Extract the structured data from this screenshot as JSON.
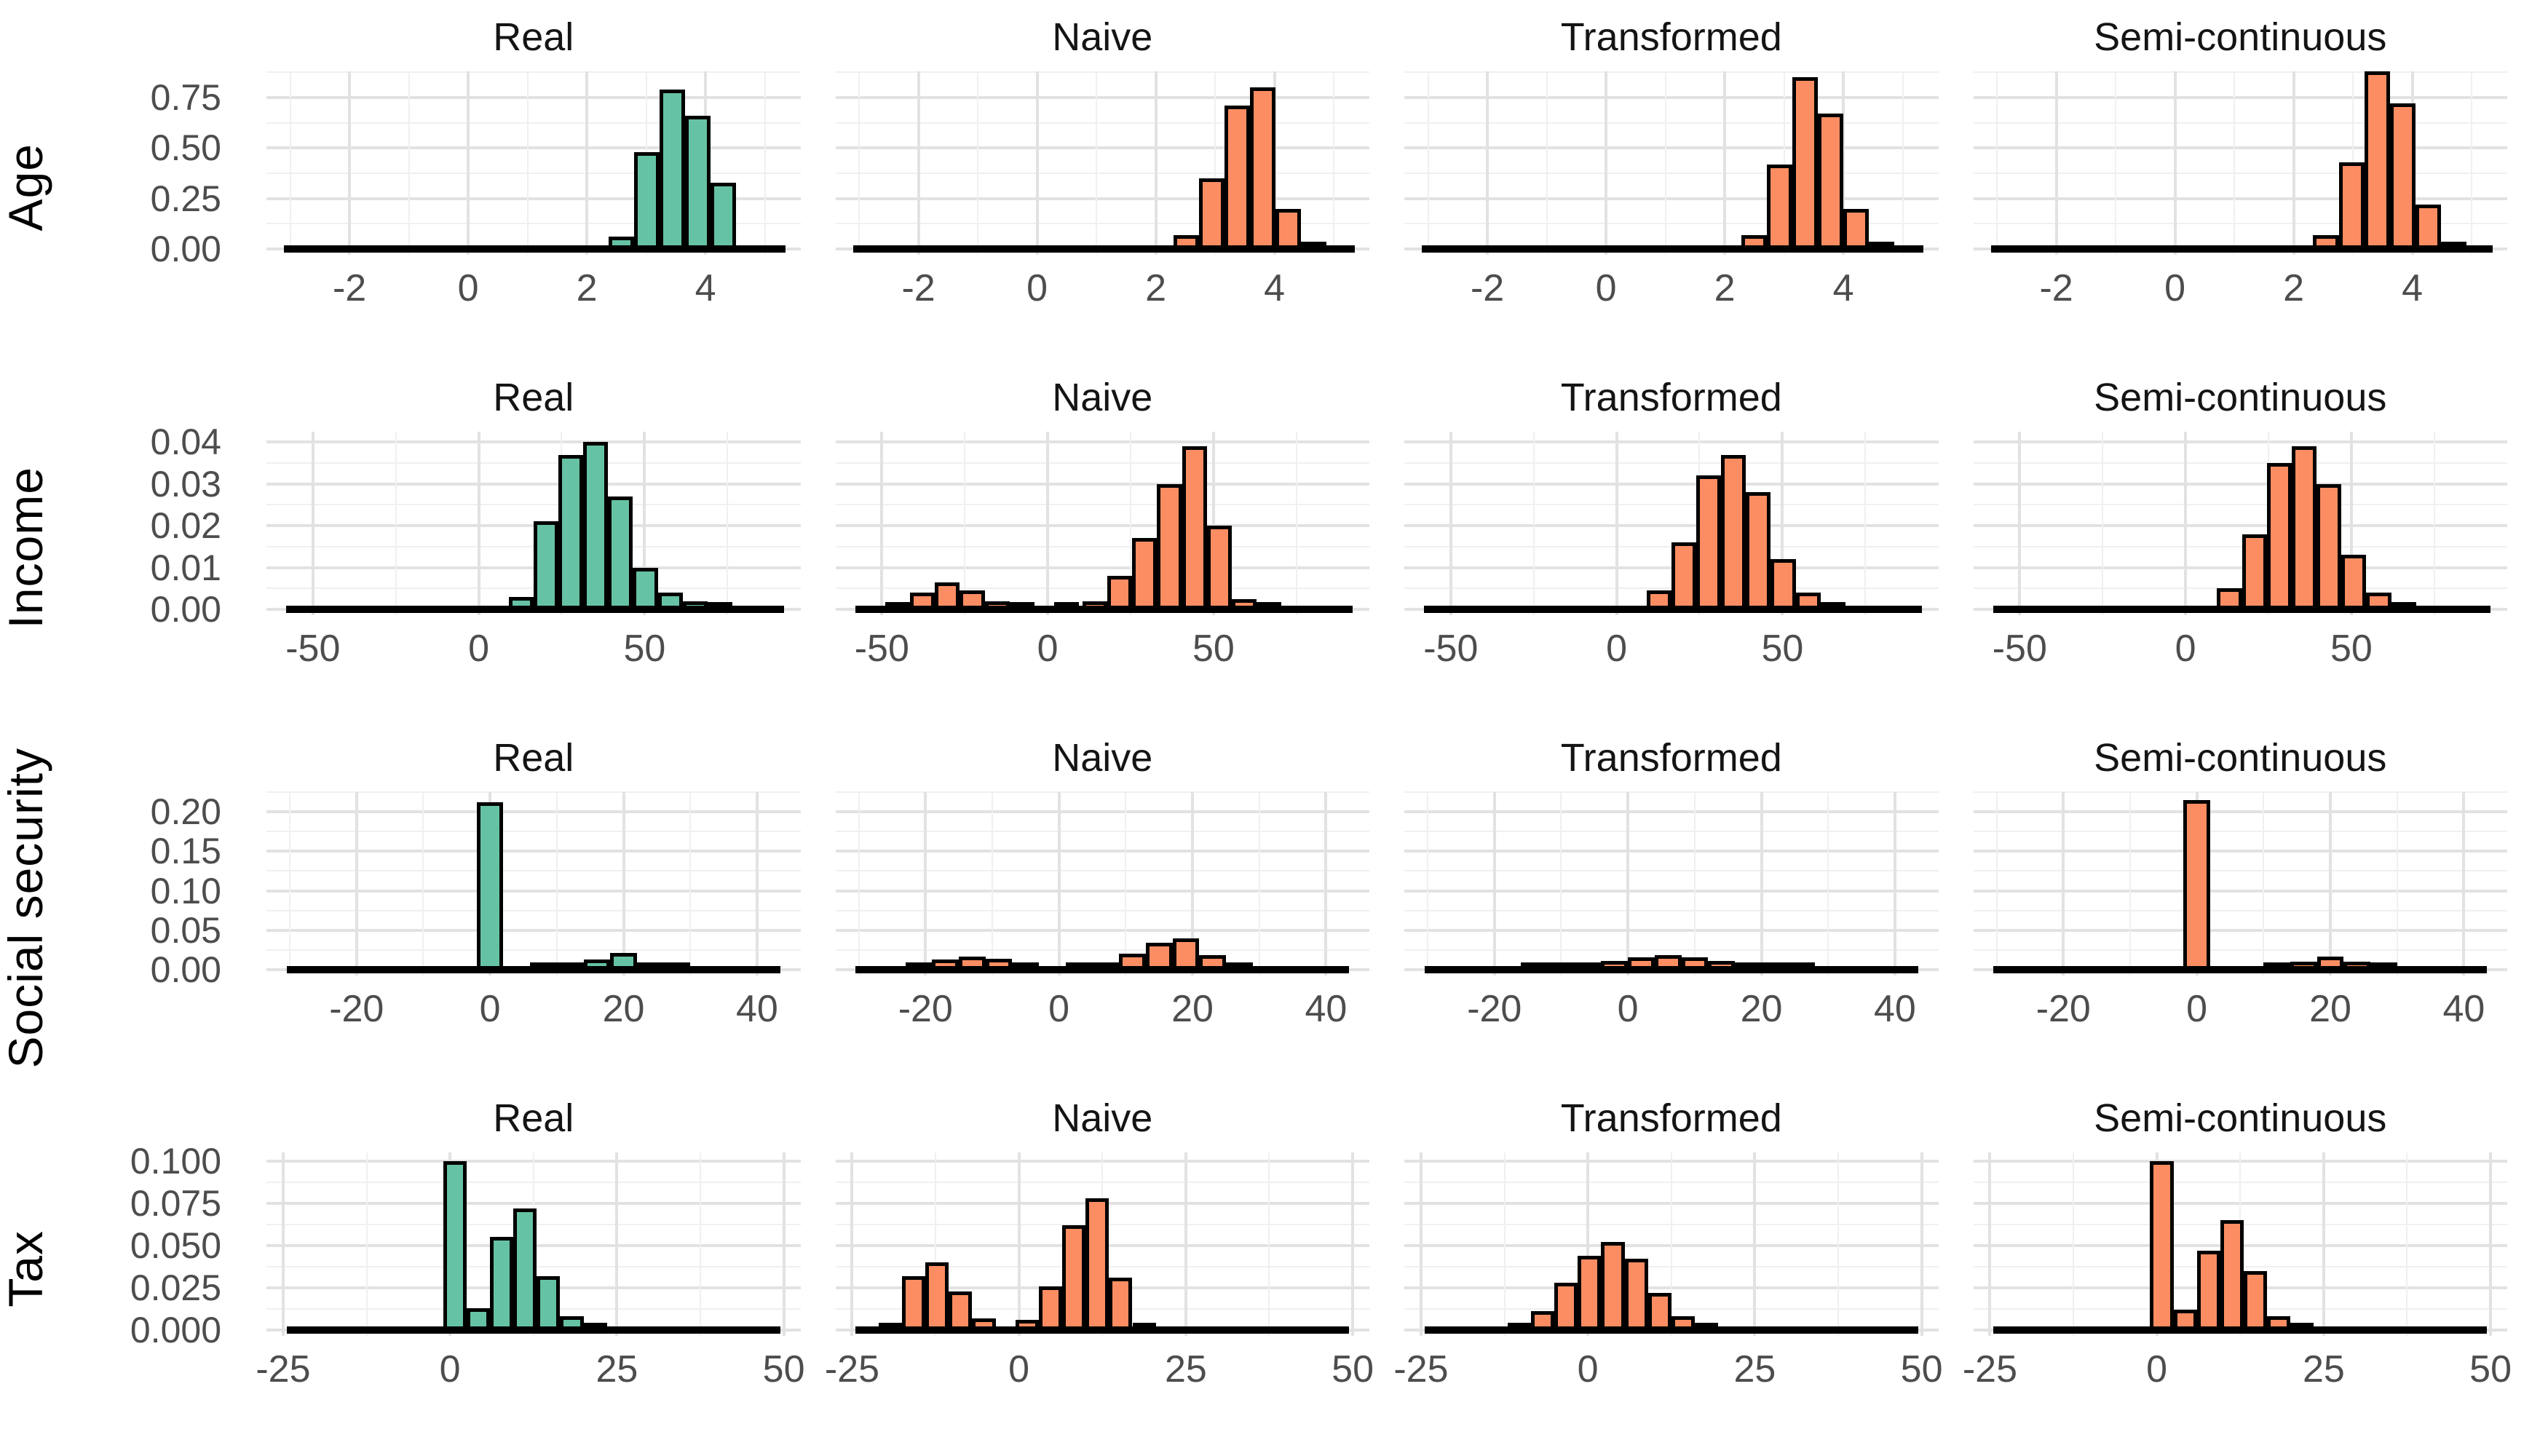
{
  "figure": {
    "kind": "faceted histogram grid",
    "columns": [
      "Real",
      "Naive",
      "Transformed",
      "Semi-continuous"
    ],
    "rows": [
      "Age",
      "Income",
      "Social security",
      "Tax"
    ]
  },
  "colors": {
    "real": "#66C2A5",
    "synthetic": "#FC8D62",
    "bar_stroke": "#000000",
    "grid_major": "#e2e2e2",
    "grid_minor": "#f0f0f0",
    "axis_text": "#4d4d4d",
    "title_text": "#141414"
  },
  "chart_data": [
    {
      "type": "bar",
      "row_label": "Age",
      "xlim": [
        -3.4,
        5.6
      ],
      "xticks": [
        {
          "v": -2,
          "label": "-2"
        },
        {
          "v": 0,
          "label": "0"
        },
        {
          "v": 2,
          "label": "2"
        },
        {
          "v": 4,
          "label": "4"
        }
      ],
      "ylim": [
        0,
        0.88
      ],
      "yticks": [
        {
          "v": 0,
          "label": "0.00"
        },
        {
          "v": 0.25,
          "label": "0.25"
        },
        {
          "v": 0.5,
          "label": "0.50"
        },
        {
          "v": 0.75,
          "label": "0.75"
        }
      ],
      "binwidth": 0.43,
      "baseline": [
        -3.1,
        5.35
      ],
      "panels": [
        {
          "title": "Real",
          "color": "real",
          "bars": [
            [
              2.37,
              0.06
            ],
            [
              2.8,
              0.48
            ],
            [
              3.23,
              0.79
            ],
            [
              3.66,
              0.66
            ],
            [
              4.09,
              0.33
            ]
          ]
        },
        {
          "title": "Naive",
          "color": "synthetic",
          "bars": [
            [
              2.3,
              0.07
            ],
            [
              2.73,
              0.35
            ],
            [
              3.16,
              0.71
            ],
            [
              3.59,
              0.8
            ],
            [
              4.02,
              0.2
            ],
            [
              4.45,
              0.02
            ]
          ]
        },
        {
          "title": "Transformed",
          "color": "synthetic",
          "bars": [
            [
              2.28,
              0.07
            ],
            [
              2.71,
              0.42
            ],
            [
              3.14,
              0.85
            ],
            [
              3.57,
              0.67
            ],
            [
              4.0,
              0.2
            ],
            [
              4.43,
              0.03
            ]
          ]
        },
        {
          "title": "Semi-continuous",
          "color": "synthetic",
          "bars": [
            [
              2.33,
              0.07
            ],
            [
              2.76,
              0.43
            ],
            [
              3.19,
              0.88
            ],
            [
              3.62,
              0.72
            ],
            [
              4.05,
              0.22
            ],
            [
              4.48,
              0.03
            ]
          ]
        }
      ]
    },
    {
      "type": "bar",
      "row_label": "Income",
      "xlim": [
        -64,
        97
      ],
      "xticks": [
        {
          "v": -50,
          "label": "-50"
        },
        {
          "v": 0,
          "label": "0"
        },
        {
          "v": 50,
          "label": "50"
        }
      ],
      "ylim": [
        0,
        0.0425
      ],
      "yticks": [
        {
          "v": 0,
          "label": "0.00"
        },
        {
          "v": 0.01,
          "label": "0.01"
        },
        {
          "v": 0.02,
          "label": "0.02"
        },
        {
          "v": 0.03,
          "label": "0.03"
        },
        {
          "v": 0.04,
          "label": "0.04"
        }
      ],
      "binwidth": 7.5,
      "baseline": [
        -58,
        92
      ],
      "panels": [
        {
          "title": "Real",
          "color": "real",
          "bars": [
            [
              9,
              0.003
            ],
            [
              16.5,
              0.021
            ],
            [
              24,
              0.037
            ],
            [
              31.5,
              0.04
            ],
            [
              39,
              0.027
            ],
            [
              46.5,
              0.01
            ],
            [
              54,
              0.004
            ],
            [
              61.5,
              0.002
            ],
            [
              69,
              0.001
            ]
          ]
        },
        {
          "title": "Naive",
          "color": "synthetic",
          "bars": [
            [
              -49,
              0.001
            ],
            [
              -41.5,
              0.004
            ],
            [
              -34,
              0.0065
            ],
            [
              -26.5,
              0.0045
            ],
            [
              -19,
              0.002
            ],
            [
              -11.5,
              0.0008
            ],
            [
              2,
              0.001
            ],
            [
              10.5,
              0.002
            ],
            [
              18,
              0.008
            ],
            [
              25.5,
              0.017
            ],
            [
              33,
              0.03
            ],
            [
              40.5,
              0.039
            ],
            [
              48,
              0.02
            ],
            [
              55.5,
              0.0025
            ],
            [
              63,
              0.001
            ]
          ]
        },
        {
          "title": "Transformed",
          "color": "synthetic",
          "bars": [
            [
              9,
              0.0045
            ],
            [
              16.5,
              0.016
            ],
            [
              24,
              0.032
            ],
            [
              31.5,
              0.037
            ],
            [
              39,
              0.028
            ],
            [
              46.5,
              0.012
            ],
            [
              54,
              0.004
            ],
            [
              61.5,
              0.0015
            ]
          ]
        },
        {
          "title": "Semi-continuous",
          "color": "synthetic",
          "bars": [
            [
              9.5,
              0.005
            ],
            [
              17,
              0.018
            ],
            [
              24.5,
              0.035
            ],
            [
              32,
              0.039
            ],
            [
              39.5,
              0.03
            ],
            [
              47,
              0.013
            ],
            [
              54.5,
              0.004
            ],
            [
              62,
              0.0015
            ]
          ]
        }
      ]
    },
    {
      "type": "bar",
      "row_label": "Social security",
      "xlim": [
        -33.5,
        46.5
      ],
      "xticks": [
        {
          "v": -20,
          "label": "-20"
        },
        {
          "v": 0,
          "label": "0"
        },
        {
          "v": 20,
          "label": "20"
        },
        {
          "v": 40,
          "label": "40"
        }
      ],
      "ylim": [
        0,
        0.225
      ],
      "yticks": [
        {
          "v": 0,
          "label": "0.00"
        },
        {
          "v": 0.05,
          "label": "0.05"
        },
        {
          "v": 0.1,
          "label": "0.10"
        },
        {
          "v": 0.15,
          "label": "0.15"
        },
        {
          "v": 0.2,
          "label": "0.20"
        }
      ],
      "binwidth": 4,
      "baseline": [
        -30.5,
        43.5
      ],
      "panels": [
        {
          "title": "Real",
          "color": "real",
          "bars": [
            [
              -2,
              0.212
            ],
            [
              6,
              0.002
            ],
            [
              10,
              0.005
            ],
            [
              14,
              0.013
            ],
            [
              18,
              0.021
            ],
            [
              22,
              0.009
            ],
            [
              26,
              0.002
            ]
          ]
        },
        {
          "title": "Naive",
          "color": "synthetic",
          "bars": [
            [
              -23,
              0.002
            ],
            [
              -19,
              0.013
            ],
            [
              -15,
              0.017
            ],
            [
              -11,
              0.014
            ],
            [
              -7,
              0.006
            ],
            [
              1,
              0.002
            ],
            [
              5,
              0.005
            ],
            [
              9,
              0.02
            ],
            [
              13,
              0.034
            ],
            [
              17,
              0.04
            ],
            [
              21,
              0.018
            ],
            [
              25,
              0.003
            ]
          ]
        },
        {
          "title": "Transformed",
          "color": "synthetic",
          "bars": [
            [
              -16,
              0.001
            ],
            [
              -12,
              0.003
            ],
            [
              -8,
              0.006
            ],
            [
              -4,
              0.011
            ],
            [
              0,
              0.016
            ],
            [
              4,
              0.018
            ],
            [
              8,
              0.016
            ],
            [
              12,
              0.011
            ],
            [
              16,
              0.007
            ],
            [
              20,
              0.003
            ],
            [
              24,
              0.001
            ]
          ]
        },
        {
          "title": "Semi-continuous",
          "color": "synthetic",
          "bars": [
            [
              -2,
              0.215
            ],
            [
              10,
              0.003
            ],
            [
              14,
              0.01
            ],
            [
              18,
              0.017
            ],
            [
              22,
              0.01
            ],
            [
              26,
              0.003
            ]
          ]
        }
      ]
    },
    {
      "type": "bar",
      "row_label": "Tax",
      "xlim": [
        -27.5,
        52.5
      ],
      "xticks": [
        {
          "v": -25,
          "label": "-25"
        },
        {
          "v": 0,
          "label": "0"
        },
        {
          "v": 25,
          "label": "25"
        },
        {
          "v": 50,
          "label": "50"
        }
      ],
      "ylim": [
        0,
        0.105
      ],
      "yticks": [
        {
          "v": 0,
          "label": "0.000"
        },
        {
          "v": 0.025,
          "label": "0.025"
        },
        {
          "v": 0.05,
          "label": "0.050"
        },
        {
          "v": 0.075,
          "label": "0.075"
        },
        {
          "v": 0.1,
          "label": "0.100"
        }
      ],
      "binwidth": 3.5,
      "baseline": [
        -24.5,
        49.5
      ],
      "panels": [
        {
          "title": "Real",
          "color": "real",
          "bars": [
            [
              -1,
              0.1
            ],
            [
              2.5,
              0.013
            ],
            [
              6,
              0.055
            ],
            [
              9.5,
              0.072
            ],
            [
              13,
              0.032
            ],
            [
              16.5,
              0.008
            ],
            [
              20,
              0.002
            ]
          ]
        },
        {
          "title": "Naive",
          "color": "synthetic",
          "bars": [
            [
              -21,
              0.004
            ],
            [
              -17.5,
              0.032
            ],
            [
              -14,
              0.04
            ],
            [
              -10.5,
              0.023
            ],
            [
              -7,
              0.007
            ],
            [
              -0.5,
              0.006
            ],
            [
              3,
              0.026
            ],
            [
              6.5,
              0.062
            ],
            [
              10,
              0.078
            ],
            [
              13.5,
              0.031
            ],
            [
              17,
              0.004
            ]
          ]
        },
        {
          "title": "Transformed",
          "color": "synthetic",
          "bars": [
            [
              -12,
              0.003
            ],
            [
              -8.5,
              0.011
            ],
            [
              -5,
              0.028
            ],
            [
              -1.5,
              0.044
            ],
            [
              2,
              0.052
            ],
            [
              5.5,
              0.042
            ],
            [
              9,
              0.022
            ],
            [
              12.5,
              0.008
            ],
            [
              16,
              0.003
            ]
          ]
        },
        {
          "title": "Semi-continuous",
          "color": "synthetic",
          "bars": [
            [
              -1,
              0.1
            ],
            [
              2.5,
              0.012
            ],
            [
              6,
              0.047
            ],
            [
              9.5,
              0.065
            ],
            [
              13,
              0.035
            ],
            [
              16.5,
              0.008
            ],
            [
              20,
              0.002
            ]
          ]
        }
      ]
    }
  ]
}
